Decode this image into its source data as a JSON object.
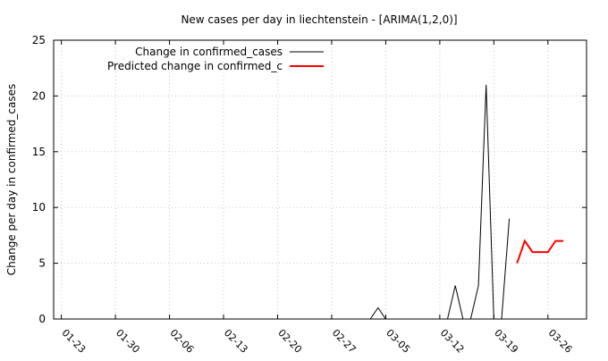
{
  "chart_data": {
    "type": "line",
    "title": "New cases per day in liechtenstein -  [ARIMA(1,2,0)]",
    "xlabel": "",
    "ylabel": "Change per day in confirmed_cases",
    "ylim": [
      0,
      25
    ],
    "yticks": [
      0,
      5,
      10,
      15,
      20,
      25
    ],
    "x_range": [
      "2020-01-22",
      "2020-03-31"
    ],
    "x_ticks": [
      {
        "date": "2020-01-23",
        "label": "01-23"
      },
      {
        "date": "2020-01-30",
        "label": "01-30"
      },
      {
        "date": "2020-02-06",
        "label": "02-06"
      },
      {
        "date": "2020-02-13",
        "label": "02-13"
      },
      {
        "date": "2020-02-20",
        "label": "02-20"
      },
      {
        "date": "2020-02-27",
        "label": "02-27"
      },
      {
        "date": "2020-03-05",
        "label": "03-05"
      },
      {
        "date": "2020-03-12",
        "label": "03-12"
      },
      {
        "date": "2020-03-19",
        "label": "03-19"
      },
      {
        "date": "2020-03-26",
        "label": "03-26"
      }
    ],
    "grid": true,
    "legend_position": "top-left",
    "series": [
      {
        "name": "Change in confirmed_cases",
        "color": "#000000",
        "points": [
          {
            "x": "2020-01-22",
            "y": 0
          },
          {
            "x": "2020-03-03",
            "y": 0
          },
          {
            "x": "2020-03-04",
            "y": 1
          },
          {
            "x": "2020-03-05",
            "y": 0
          },
          {
            "x": "2020-03-13",
            "y": 0
          },
          {
            "x": "2020-03-14",
            "y": 3
          },
          {
            "x": "2020-03-15",
            "y": 0
          },
          {
            "x": "2020-03-16",
            "y": 0
          },
          {
            "x": "2020-03-17",
            "y": 3
          },
          {
            "x": "2020-03-18",
            "y": 21
          },
          {
            "x": "2020-03-19",
            "y": 0
          },
          {
            "x": "2020-03-20",
            "y": 0
          },
          {
            "x": "2020-03-21",
            "y": 9
          }
        ]
      },
      {
        "name": "Predicted change in confirmed_c",
        "color": "#ff0000",
        "points": [
          {
            "x": "2020-03-22",
            "y": 5
          },
          {
            "x": "2020-03-23",
            "y": 7
          },
          {
            "x": "2020-03-24",
            "y": 6
          },
          {
            "x": "2020-03-25",
            "y": 6
          },
          {
            "x": "2020-03-26",
            "y": 6
          },
          {
            "x": "2020-03-27",
            "y": 7
          },
          {
            "x": "2020-03-28",
            "y": 7
          }
        ]
      }
    ]
  }
}
